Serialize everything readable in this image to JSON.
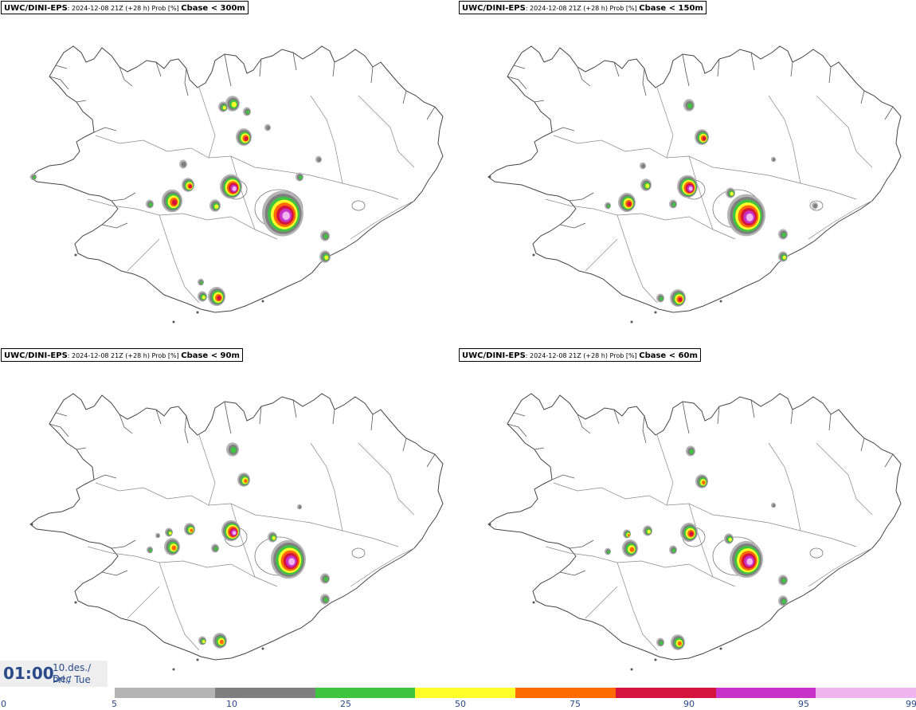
{
  "panels": [
    {
      "model": "UWC/DINI-EPS",
      "meta": ": 2024-12-08 21Z (+28 h) Prob [%] ",
      "threshold": "Cbase < 300m"
    },
    {
      "model": "UWC/DINI-EPS",
      "meta": ": 2024-12-08 21Z (+28 h) Prob [%] ",
      "threshold": "Cbase < 150m"
    },
    {
      "model": "UWC/DINI-EPS",
      "meta": ": 2024-12-08 21Z (+28 h) Prob [%] ",
      "threshold": "Cbase < 90m"
    },
    {
      "model": "UWC/DINI-EPS",
      "meta": ": 2024-12-08 21Z (+28 h) Prob [%] ",
      "threshold": "Cbase < 60m"
    }
  ],
  "timebox": {
    "time": "01:00",
    "date_line1": "10.des./ Dec",
    "date_line2": "Þri./ Tue"
  },
  "colorbar": {
    "ticks": [
      "0",
      "5",
      "10",
      "25",
      "50",
      "75",
      "90",
      "95",
      "99"
    ],
    "colors": [
      "#b4b4b4",
      "#7f7f7f",
      "#3ec43e",
      "#ffff2a",
      "#ff6a00",
      "#d4143c",
      "#c832c8",
      "#f0b4f0"
    ]
  },
  "colors": {
    "outline": "#555555",
    "ice": "#999999",
    "accent": "#2a4a8a"
  }
}
